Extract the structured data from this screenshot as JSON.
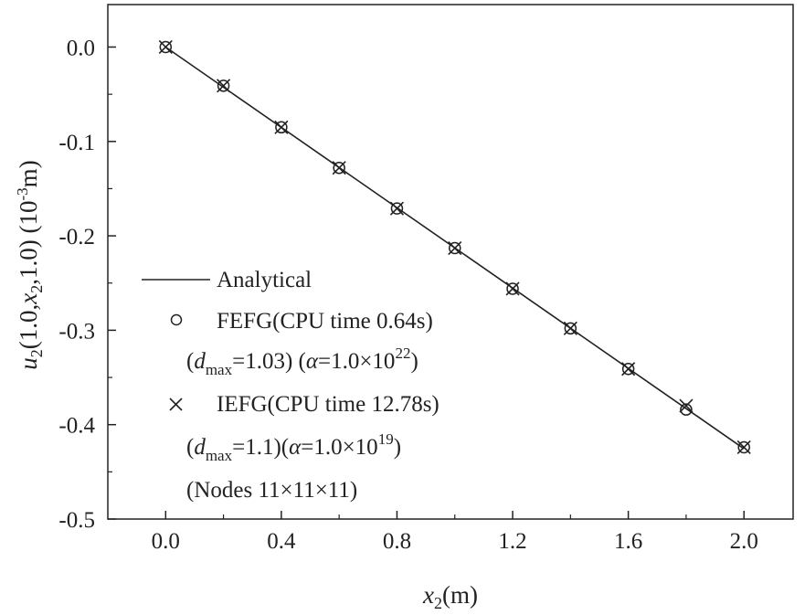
{
  "chart_data": {
    "type": "line",
    "xlabel": {
      "main": "x",
      "sub": "2",
      "unit": "(m)"
    },
    "ylabel": {
      "u": "u",
      "u_sub": "2",
      "args_a": "(1.0,",
      "x": "x",
      "x_sub": "2",
      "args_b": ",1.0) (10",
      "exp": "-3",
      "unit": "m)"
    },
    "xlim": [
      -0.2,
      2.17
    ],
    "ylim": [
      -0.5,
      0.045
    ],
    "xticks": [
      0.0,
      0.4,
      0.8,
      1.2,
      1.6,
      2.0
    ],
    "xtick_labels": [
      "0.0",
      "0.4",
      "0.8",
      "1.2",
      "1.6",
      "2.0"
    ],
    "yticks": [
      0.0,
      -0.1,
      -0.2,
      -0.3,
      -0.4,
      -0.5
    ],
    "ytick_labels": [
      "0.0",
      "-0.1",
      "-0.2",
      "-0.3",
      "-0.4",
      "-0.5"
    ],
    "grid": false,
    "legend_position": "bottom-left",
    "series": [
      {
        "name": "Analytical",
        "style": "line",
        "x": [
          0.0,
          2.0
        ],
        "y": [
          0.0,
          -0.4255
        ]
      },
      {
        "name": "FEFG",
        "style": "circle",
        "x": [
          0.0,
          0.2,
          0.4,
          0.6,
          0.8,
          1.0,
          1.2,
          1.4,
          1.6,
          1.8,
          2.0
        ],
        "y": [
          0.0,
          -0.041,
          -0.085,
          -0.128,
          -0.171,
          -0.213,
          -0.256,
          -0.298,
          -0.341,
          -0.384,
          -0.424
        ]
      },
      {
        "name": "IEFG",
        "style": "cross",
        "x": [
          0.0,
          0.2,
          0.4,
          0.6,
          0.8,
          1.0,
          1.2,
          1.4,
          1.6,
          1.8,
          2.0
        ],
        "y": [
          0.0,
          -0.041,
          -0.085,
          -0.128,
          -0.171,
          -0.213,
          -0.256,
          -0.298,
          -0.341,
          -0.38,
          -0.424
        ]
      }
    ],
    "legend": {
      "analytical": "Analytical",
      "fefg": "FEFG(CPU time 0.64s)",
      "fefg_params": {
        "open": "(",
        "d": "d",
        "d_sub": "max",
        "a": "=1.03) (",
        "alpha": "α",
        "b": "=1.0×10",
        "exp": "22",
        "close": ")"
      },
      "iefg": "IEFG(CPU time 12.78s)",
      "iefg_params": {
        "open": "(",
        "d": "d",
        "d_sub": "max",
        "a": "=1.1)(",
        "alpha": "α",
        "b": "=1.0×10",
        "exp": "19",
        "close": ")"
      },
      "nodes": "(Nodes 11×11×11)"
    }
  }
}
